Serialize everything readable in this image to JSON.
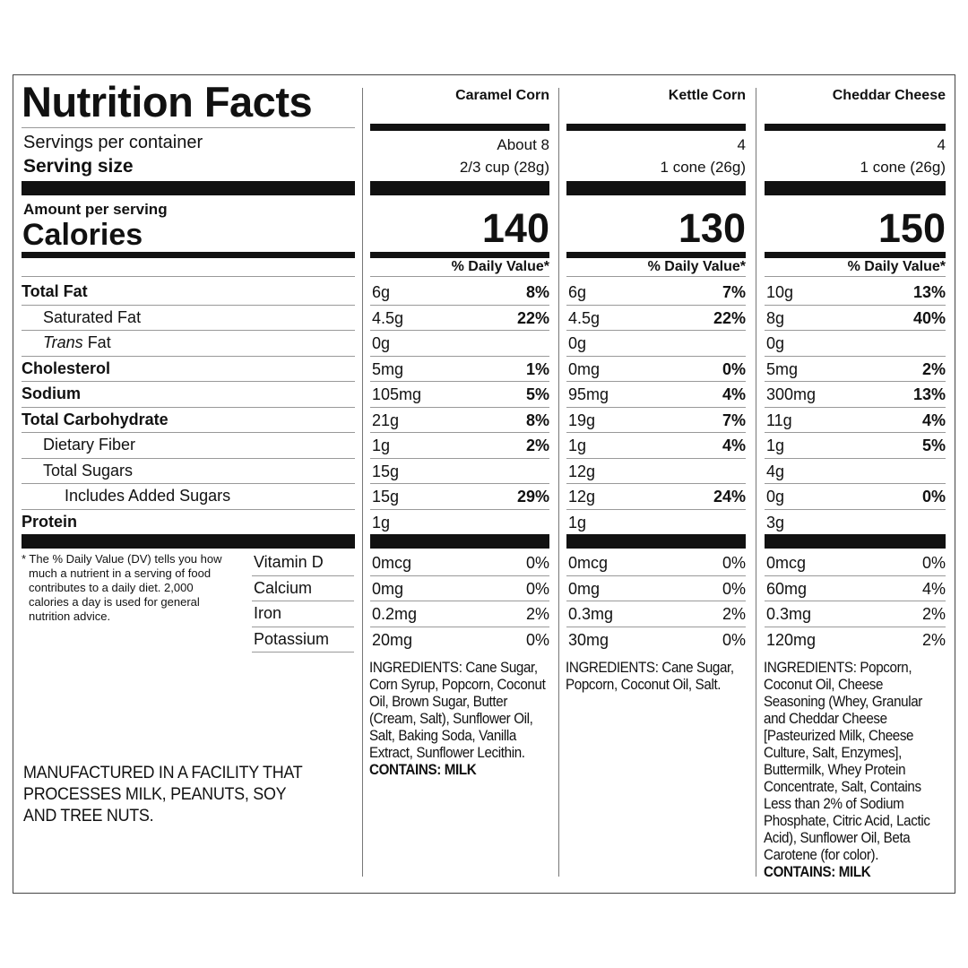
{
  "title": "Nutrition Facts",
  "servings_label": "Servings per container",
  "serving_size_label": "Serving size",
  "amount_label": "Amount per serving",
  "calories_label": "Calories",
  "dv_header": "% Daily Value*",
  "nutrients": [
    {
      "label": "Total Fat",
      "bold": true,
      "indent": 0
    },
    {
      "label": "Saturated Fat",
      "bold": false,
      "indent": 1
    },
    {
      "italic": "Trans",
      "label": "Fat",
      "bold": false,
      "indent": 1
    },
    {
      "label": "Cholesterol",
      "bold": true,
      "indent": 0
    },
    {
      "label": "Sodium",
      "bold": true,
      "indent": 0
    },
    {
      "label": "Total Carbohydrate",
      "bold": true,
      "indent": 0
    },
    {
      "label": "Dietary Fiber",
      "bold": false,
      "indent": 1
    },
    {
      "label": "Total Sugars",
      "bold": false,
      "indent": 1
    },
    {
      "label": "Includes Added Sugars",
      "bold": false,
      "indent": 2
    },
    {
      "label": "Protein",
      "bold": true,
      "indent": 0
    }
  ],
  "footnote": "* The % Daily Value (DV) tells you how much a nutrient in a serving of food contributes to a daily diet. 2,000 calories a day is used for general nutrition advice.",
  "vitamins": [
    "Vitamin D",
    "Calcium",
    "Iron",
    "Potassium"
  ],
  "facility": "MANUFACTURED IN A FACILITY THAT PROCESSES MILK, PEANUTS, SOY AND TREE NUTS.",
  "products": [
    {
      "name": "Caramel Corn",
      "servings": "About 8",
      "serving_size": "2/3 cup (28g)",
      "calories": "140",
      "nutrients": [
        {
          "amount": "6g",
          "dv": "8%"
        },
        {
          "amount": "4.5g",
          "dv": "22%"
        },
        {
          "amount": "0g"
        },
        {
          "amount": "5mg",
          "dv": "1%"
        },
        {
          "amount": "105mg",
          "dv": "5%"
        },
        {
          "amount": "21g",
          "dv": "8%"
        },
        {
          "amount": "1g",
          "dv": "2%"
        },
        {
          "amount": "15g"
        },
        {
          "amount": "15g",
          "dv": "29%"
        },
        {
          "amount": "1g"
        }
      ],
      "vitamins": [
        {
          "amount": "0mcg",
          "dv": "0%"
        },
        {
          "amount": "0mg",
          "dv": "0%"
        },
        {
          "amount": "0.2mg",
          "dv": "2%"
        },
        {
          "amount": "20mg",
          "dv": "0%"
        }
      ],
      "ingredients": "INGREDIENTS: Cane Sugar, Corn Syrup, Popcorn, Coconut Oil, Brown Sugar, Butter (Cream, Salt), Sunflower Oil, Salt, Baking Soda, Vanilla Extract, Sunflower Lecithin.",
      "contains": "CONTAINS: MILK"
    },
    {
      "name": "Kettle Corn",
      "servings": "4",
      "serving_size": "1 cone (26g)",
      "calories": "130",
      "nutrients": [
        {
          "amount": "6g",
          "dv": "7%"
        },
        {
          "amount": "4.5g",
          "dv": "22%"
        },
        {
          "amount": "0g"
        },
        {
          "amount": "0mg",
          "dv": "0%"
        },
        {
          "amount": "95mg",
          "dv": "4%"
        },
        {
          "amount": "19g",
          "dv": "7%"
        },
        {
          "amount": "1g",
          "dv": "4%"
        },
        {
          "amount": "12g"
        },
        {
          "amount": "12g",
          "dv": "24%"
        },
        {
          "amount": "1g"
        }
      ],
      "vitamins": [
        {
          "amount": "0mcg",
          "dv": "0%"
        },
        {
          "amount": "0mg",
          "dv": "0%"
        },
        {
          "amount": "0.3mg",
          "dv": "2%"
        },
        {
          "amount": "30mg",
          "dv": "0%"
        }
      ],
      "ingredients": "INGREDIENTS: Cane Sugar, Popcorn, Coconut Oil, Salt."
    },
    {
      "name": "Cheddar Cheese",
      "servings": "4",
      "serving_size": "1 cone (26g)",
      "calories": "150",
      "nutrients": [
        {
          "amount": "10g",
          "dv": "13%"
        },
        {
          "amount": "8g",
          "dv": "40%"
        },
        {
          "amount": "0g"
        },
        {
          "amount": "5mg",
          "dv": "2%"
        },
        {
          "amount": "300mg",
          "dv": "13%"
        },
        {
          "amount": "11g",
          "dv": "4%"
        },
        {
          "amount": "1g",
          "dv": "5%"
        },
        {
          "amount": "4g"
        },
        {
          "amount": "0g",
          "dv": "0%"
        },
        {
          "amount": "3g"
        }
      ],
      "vitamins": [
        {
          "amount": "0mcg",
          "dv": "0%"
        },
        {
          "amount": "60mg",
          "dv": "4%"
        },
        {
          "amount": "0.3mg",
          "dv": "2%"
        },
        {
          "amount": "120mg",
          "dv": "2%"
        }
      ],
      "ingredients": "INGREDIENTS: Popcorn, Coconut Oil, Cheese Seasoning (Whey, Granular and Cheddar Cheese [Pasteurized Milk, Cheese Culture, Salt, Enzymes], Buttermilk, Whey Protein Concentrate, Salt, Contains Less than 2% of Sodium Phosphate, Citric Acid, Lactic Acid), Sunflower Oil, Beta Carotene (for color).",
      "contains": "CONTAINS: MILK"
    }
  ]
}
